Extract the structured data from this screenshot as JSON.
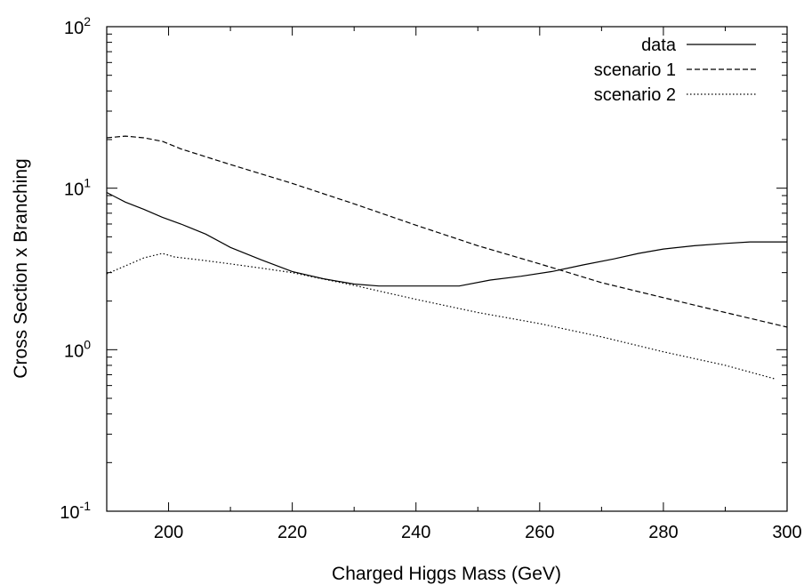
{
  "chart_data": {
    "type": "line",
    "title": "",
    "xlabel": "Charged Higgs Mass (GeV)",
    "ylabel": "Cross Section x Branching",
    "xlim": [
      190,
      300
    ],
    "ylim": [
      0.1,
      100
    ],
    "yscale": "log",
    "grid": false,
    "legend_position": "top-right",
    "x_ticks": [
      "200",
      "220",
      "240",
      "260",
      "280",
      "300"
    ],
    "y_ticks": [
      {
        "base": "10",
        "exp": "-1"
      },
      {
        "base": "10",
        "exp": "0"
      },
      {
        "base": "10",
        "exp": "1"
      },
      {
        "base": "10",
        "exp": "2"
      }
    ],
    "series": [
      {
        "name": "data",
        "style": "solid",
        "color": "#000000",
        "points": [
          [
            190,
            9.4
          ],
          [
            193,
            8.2
          ],
          [
            196,
            7.4
          ],
          [
            199,
            6.6
          ],
          [
            202,
            6.0
          ],
          [
            206,
            5.2
          ],
          [
            210,
            4.3
          ],
          [
            215,
            3.6
          ],
          [
            220,
            3.05
          ],
          [
            225,
            2.75
          ],
          [
            230,
            2.55
          ],
          [
            234,
            2.48
          ],
          [
            240,
            2.48
          ],
          [
            247,
            2.48
          ],
          [
            252,
            2.7
          ],
          [
            257,
            2.85
          ],
          [
            262,
            3.05
          ],
          [
            267,
            3.35
          ],
          [
            272,
            3.65
          ],
          [
            276,
            3.95
          ],
          [
            280,
            4.2
          ],
          [
            285,
            4.4
          ],
          [
            290,
            4.55
          ],
          [
            294,
            4.65
          ],
          [
            300,
            4.65
          ]
        ]
      },
      {
        "name": "scenario 1",
        "style": "dashed",
        "color": "#000000",
        "points": [
          [
            190,
            20.5
          ],
          [
            193,
            21.0
          ],
          [
            196,
            20.5
          ],
          [
            199,
            19.5
          ],
          [
            202,
            17.5
          ],
          [
            210,
            14.0
          ],
          [
            220,
            10.7
          ],
          [
            230,
            8.0
          ],
          [
            240,
            5.9
          ],
          [
            250,
            4.4
          ],
          [
            260,
            3.4
          ],
          [
            270,
            2.6
          ],
          [
            280,
            2.1
          ],
          [
            290,
            1.7
          ],
          [
            300,
            1.38
          ]
        ]
      },
      {
        "name": "scenario 2",
        "style": "dotted",
        "color": "#000000",
        "points": [
          [
            190,
            2.95
          ],
          [
            193,
            3.3
          ],
          [
            196,
            3.7
          ],
          [
            199,
            3.95
          ],
          [
            201,
            3.75
          ],
          [
            205,
            3.6
          ],
          [
            210,
            3.4
          ],
          [
            215,
            3.2
          ],
          [
            220,
            3.0
          ],
          [
            230,
            2.5
          ],
          [
            240,
            2.05
          ],
          [
            250,
            1.7
          ],
          [
            260,
            1.45
          ],
          [
            270,
            1.2
          ],
          [
            280,
            0.97
          ],
          [
            290,
            0.8
          ],
          [
            298,
            0.66
          ]
        ]
      }
    ]
  }
}
